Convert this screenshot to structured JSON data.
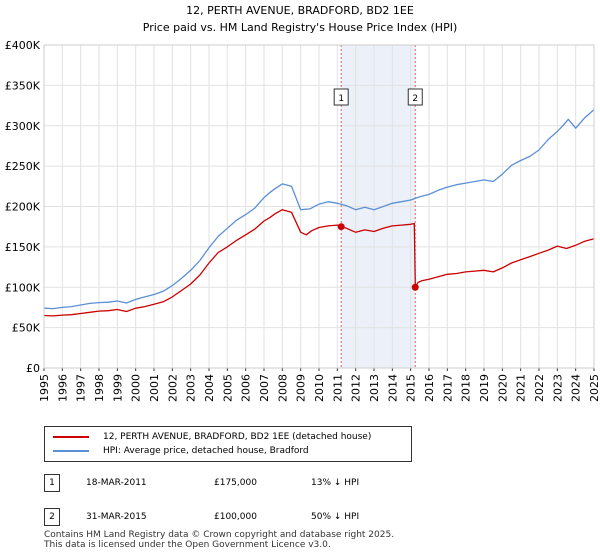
{
  "chart_data": {
    "type": "line",
    "title": "12, PERTH AVENUE, BRADFORD, BD2 1EE",
    "subtitle": "Price paid vs. HM Land Registry's House Price Index (HPI)",
    "xlabel": "",
    "ylabel": "",
    "xlim": [
      1995,
      2025
    ],
    "ylim": [
      0,
      400000
    ],
    "x_ticks": [
      "1995",
      "1996",
      "1997",
      "1998",
      "1999",
      "2000",
      "2001",
      "2002",
      "2003",
      "2004",
      "2005",
      "2006",
      "2007",
      "2008",
      "2009",
      "2010",
      "2011",
      "2012",
      "2013",
      "2014",
      "2015",
      "2016",
      "2017",
      "2018",
      "2019",
      "2020",
      "2021",
      "2022",
      "2023",
      "2024",
      "2025"
    ],
    "y_ticks": [
      {
        "value": 0,
        "label": "£0"
      },
      {
        "value": 50000,
        "label": "£50K"
      },
      {
        "value": 100000,
        "label": "£100K"
      },
      {
        "value": 150000,
        "label": "£150K"
      },
      {
        "value": 200000,
        "label": "£200K"
      },
      {
        "value": 250000,
        "label": "£250K"
      },
      {
        "value": 300000,
        "label": "£300K"
      },
      {
        "value": 350000,
        "label": "£350K"
      },
      {
        "value": 400000,
        "label": "£400K"
      }
    ],
    "grid": true,
    "shaded_ranges": [
      [
        2011.21,
        2015.25
      ]
    ],
    "markers": [
      {
        "label": "1",
        "x": 2011.21,
        "y": 175000
      },
      {
        "label": "2",
        "x": 2015.25,
        "y": 100000
      }
    ],
    "series": [
      {
        "name": "12, PERTH AVENUE, BRADFORD, BD2 1EE (detached house)",
        "color": "#cc0000",
        "x": [
          1995,
          1995.5,
          1996,
          1996.5,
          1997,
          1997.5,
          1998,
          1998.5,
          1999,
          1999.5,
          2000,
          2000.5,
          2001,
          2001.5,
          2002,
          2002.5,
          2003,
          2003.5,
          2004,
          2004.5,
          2005,
          2005.5,
          2006,
          2006.5,
          2007,
          2007.3,
          2007.6,
          2008,
          2008.5,
          2009,
          2009.3,
          2009.6,
          2010,
          2010.5,
          2011,
          2011.21,
          2011.5,
          2012,
          2012.5,
          2013,
          2013.5,
          2014,
          2014.5,
          2015,
          2015.2,
          2015.25,
          2015.4,
          2015.6,
          2016,
          2016.5,
          2017,
          2017.5,
          2018,
          2018.5,
          2019,
          2019.5,
          2020,
          2020.5,
          2021,
          2021.5,
          2022,
          2022.5,
          2023,
          2023.5,
          2024,
          2024.5,
          2025
        ],
        "values": [
          65000,
          64500,
          65500,
          66000,
          67500,
          69000,
          70500,
          71000,
          72500,
          70000,
          74000,
          76000,
          79000,
          82000,
          88000,
          96000,
          104000,
          115000,
          130000,
          143000,
          150000,
          158000,
          165000,
          172000,
          182000,
          186000,
          191000,
          196000,
          193000,
          168000,
          165000,
          170000,
          174000,
          176000,
          177000,
          175000,
          173000,
          168000,
          171000,
          169000,
          173000,
          176000,
          177000,
          178000,
          179000,
          100000,
          106000,
          108000,
          110000,
          113000,
          116000,
          117000,
          119000,
          120000,
          121000,
          119000,
          124000,
          130000,
          134000,
          138000,
          142000,
          146000,
          151000,
          148000,
          152000,
          157000,
          160000
        ]
      },
      {
        "name": "HPI: Average price, detached house, Bradford",
        "color": "#5b8fd6",
        "x": [
          1995,
          1995.5,
          1996,
          1996.5,
          1997,
          1997.5,
          1998,
          1998.5,
          1999,
          1999.5,
          2000,
          2000.5,
          2001,
          2001.5,
          2002,
          2002.5,
          2003,
          2003.5,
          2004,
          2004.5,
          2005,
          2005.5,
          2006,
          2006.5,
          2007,
          2007.3,
          2007.6,
          2008,
          2008.5,
          2009,
          2009.5,
          2010,
          2010.5,
          2011,
          2011.5,
          2012,
          2012.5,
          2013,
          2013.5,
          2014,
          2014.5,
          2015,
          2015.5,
          2016,
          2016.5,
          2017,
          2017.5,
          2018,
          2018.5,
          2019,
          2019.5,
          2020,
          2020.5,
          2021,
          2021.5,
          2022,
          2022.5,
          2023,
          2023.3,
          2023.6,
          2024,
          2024.5,
          2025
        ],
        "values": [
          74000,
          73500,
          75000,
          76000,
          78000,
          80000,
          81000,
          81500,
          83000,
          80500,
          85000,
          88000,
          91000,
          95000,
          102000,
          111000,
          121000,
          133000,
          149000,
          163000,
          173000,
          183000,
          190000,
          198000,
          211000,
          217000,
          222000,
          228000,
          225000,
          196000,
          197000,
          203000,
          206000,
          204000,
          201000,
          196000,
          199000,
          196000,
          200000,
          204000,
          206000,
          208000,
          212000,
          215000,
          220000,
          224000,
          227000,
          229000,
          231000,
          233000,
          231000,
          240000,
          251000,
          257000,
          262000,
          270000,
          283000,
          293000,
          300000,
          308000,
          297000,
          310000,
          320000
        ]
      }
    ]
  },
  "legend": {
    "items": [
      {
        "label": "12, PERTH AVENUE, BRADFORD, BD2 1EE (detached house)",
        "color": "#cc0000"
      },
      {
        "label": "HPI: Average price, detached house, Bradford",
        "color": "#5b8fd6"
      }
    ]
  },
  "sales": [
    {
      "marker": "1",
      "date": "18-MAR-2011",
      "price": "£175,000",
      "hpi": "13% ↓ HPI"
    },
    {
      "marker": "2",
      "date": "31-MAR-2015",
      "price": "£100,000",
      "hpi": "50% ↓ HPI"
    }
  ],
  "footer": {
    "line1": "Contains HM Land Registry data © Crown copyright and database right 2025.",
    "line2": "This data is licensed under the Open Government Licence v3.0."
  }
}
